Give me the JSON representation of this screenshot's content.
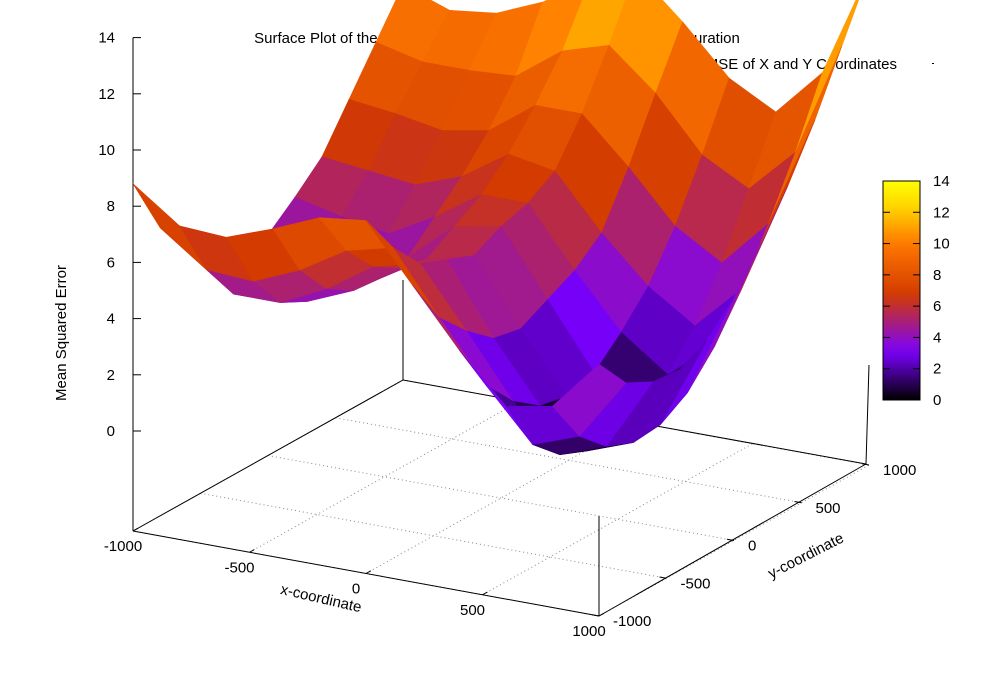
{
  "chart_data": {
    "type": "surface3d",
    "title": "Surface Plot of the Error function for a Given Point+Satalite Configuration",
    "legend_label": "MSE of X and Y Coordinates",
    "xlabel": "x-coordinate",
    "ylabel": "y-coordinate",
    "zlabel": "Mean Squared Error",
    "xlim": [
      -1000,
      1000
    ],
    "ylim": [
      -1000,
      1000
    ],
    "zlim": [
      0,
      14
    ],
    "x_ticks": [
      "-1000",
      "-500",
      "0",
      "500",
      "1000"
    ],
    "y_ticks": [
      "-1000",
      "-500",
      "0",
      "500",
      "1000"
    ],
    "z_ticks": [
      "0",
      "2",
      "4",
      "6",
      "8",
      "10",
      "12",
      "14"
    ],
    "colorbar_ticks": [
      "0",
      "2",
      "4",
      "6",
      "8",
      "10",
      "12",
      "14"
    ],
    "colorbar_range": [
      0,
      14
    ],
    "colormap": "gnuplot-pm3d",
    "palette": [
      "#000000",
      "#7a00ff",
      "#d23a00",
      "#ff7a00",
      "#ffd500",
      "#ffff00"
    ],
    "grid": "xy-plane",
    "surface": {
      "x": [
        -1000,
        -800,
        -600,
        -400,
        -200,
        0,
        200,
        400,
        600,
        800,
        1000
      ],
      "y": [
        -1000,
        -800,
        -600,
        -400,
        -200,
        0,
        200,
        400,
        600,
        800,
        1000
      ],
      "z": [
        [
          8.8,
          6.7,
          5.4,
          4.5,
          4.2,
          4.3,
          5.1,
          6.0,
          7.5,
          9.0,
          10.5
        ],
        [
          7.6,
          5.5,
          4.1,
          3.4,
          3.3,
          3.8,
          4.7,
          5.8,
          7.3,
          8.6,
          9.9
        ],
        [
          7.5,
          5.4,
          4.1,
          3.6,
          3.5,
          3.7,
          4.4,
          5.6,
          7.0,
          8.6,
          10.1
        ],
        [
          8.1,
          6.1,
          4.9,
          4.3,
          4.2,
          4.4,
          5.3,
          6.2,
          7.3,
          8.7,
          10.8
        ],
        [
          8.8,
          7.1,
          6.0,
          5.4,
          5.2,
          5.8,
          6.4,
          7.3,
          8.5,
          9.9,
          11.8
        ],
        [
          9.0,
          7.5,
          6.4,
          6.0,
          5.6,
          6.1,
          6.4,
          7.0,
          8.5,
          10.4,
          12.5
        ],
        [
          7.0,
          5.3,
          4.3,
          3.5,
          3.3,
          3.8,
          4.3,
          5.1,
          6.9,
          9.0,
          11.0
        ],
        [
          5.0,
          3.2,
          2.1,
          1.4,
          1.2,
          1.5,
          2.4,
          3.5,
          5.1,
          7.1,
          9.3
        ],
        [
          3.3,
          1.4,
          0.5,
          0.1,
          0.0,
          0.3,
          1.2,
          2.4,
          4.1,
          6.2,
          8.4
        ],
        [
          3.6,
          2.0,
          1.1,
          0.7,
          0.8,
          1.4,
          2.5,
          4.0,
          5.8,
          7.8,
          10.1
        ],
        [
          5.4,
          4.2,
          3.7,
          3.6,
          4.1,
          5.1,
          6.5,
          8.0,
          9.8,
          11.9,
          14.0
        ]
      ]
    }
  }
}
